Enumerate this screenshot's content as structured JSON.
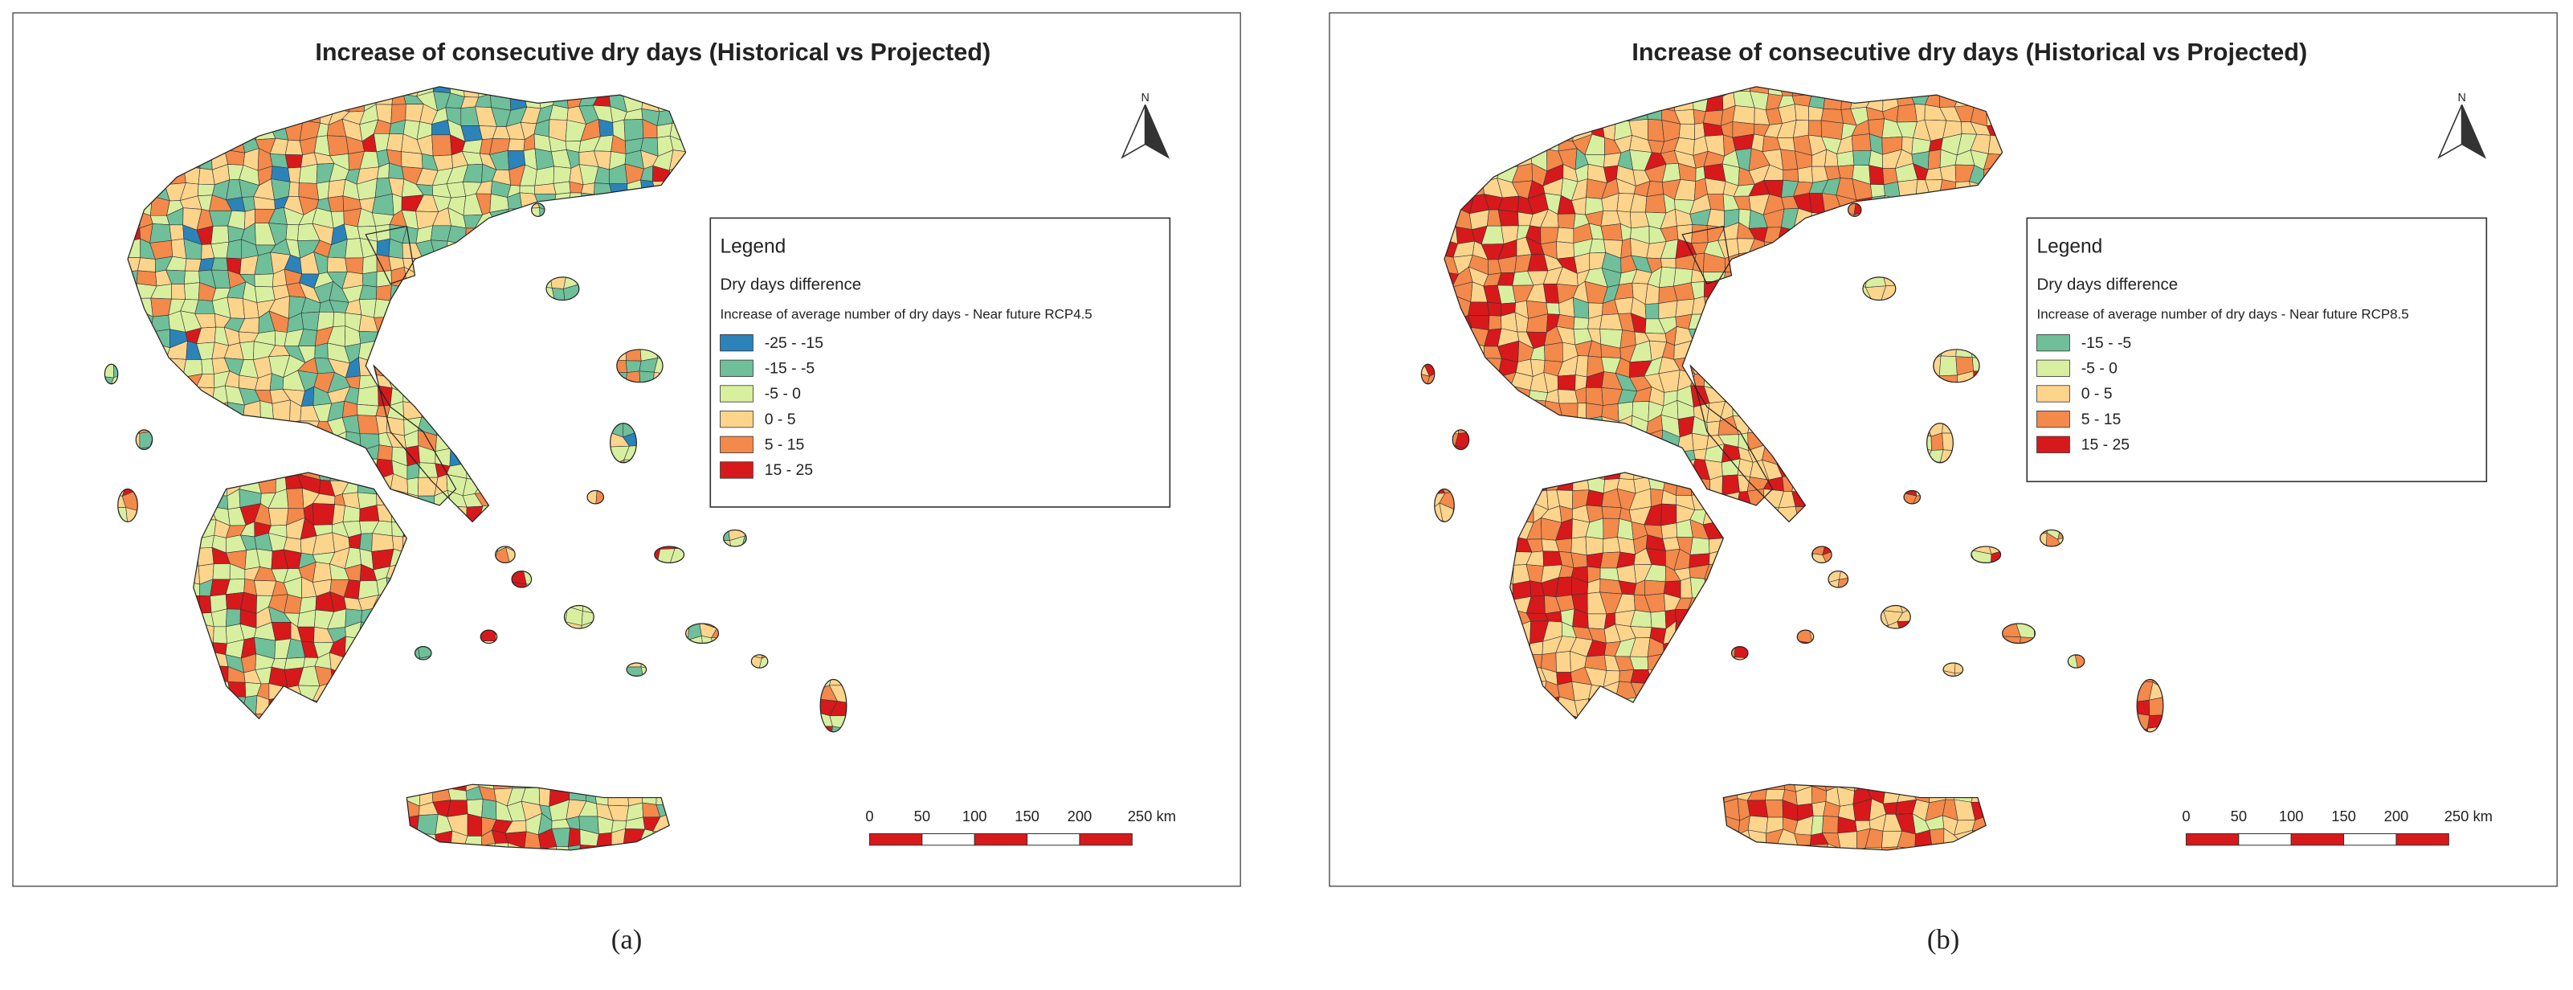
{
  "panels": [
    {
      "title": "Increase of consecutive dry days (Historical vs Projected)",
      "north": "N",
      "legend": {
        "heading": "Legend",
        "field": "Dry days difference",
        "layer": "Increase of average number of dry days - Near future RCP4.5",
        "items": [
          {
            "label": "-25 - -15",
            "color": "#2b83ba"
          },
          {
            "label": "-15 - -5",
            "color": "#6fbf9a"
          },
          {
            "label": "-5 - 0",
            "color": "#d9efa0"
          },
          {
            "label": "0 - 5",
            "color": "#fdd48c"
          },
          {
            "label": "5 - 15",
            "color": "#f3894b"
          },
          {
            "label": "15 - 25",
            "color": "#d7191c"
          }
        ]
      },
      "scale_bar": [
        "0",
        "50",
        "100",
        "150",
        "200",
        "250 km"
      ],
      "caption": "(a)"
    },
    {
      "title": "Increase of consecutive dry days (Historical vs Projected)",
      "north": "N",
      "legend": {
        "heading": "Legend",
        "field": "Dry days difference",
        "layer": "Increase of average number of dry days - Near future RCP8.5",
        "items": [
          {
            "label": "-15 - -5",
            "color": "#6fbf9a"
          },
          {
            "label": "-5 - 0",
            "color": "#d9efa0"
          },
          {
            "label": "0 - 5",
            "color": "#fdd48c"
          },
          {
            "label": "5 - 15",
            "color": "#f3894b"
          },
          {
            "label": "15 - 25",
            "color": "#d7191c"
          }
        ]
      },
      "scale_bar": [
        "0",
        "50",
        "100",
        "150",
        "200",
        "250 km"
      ],
      "caption": "(b)"
    }
  ]
}
